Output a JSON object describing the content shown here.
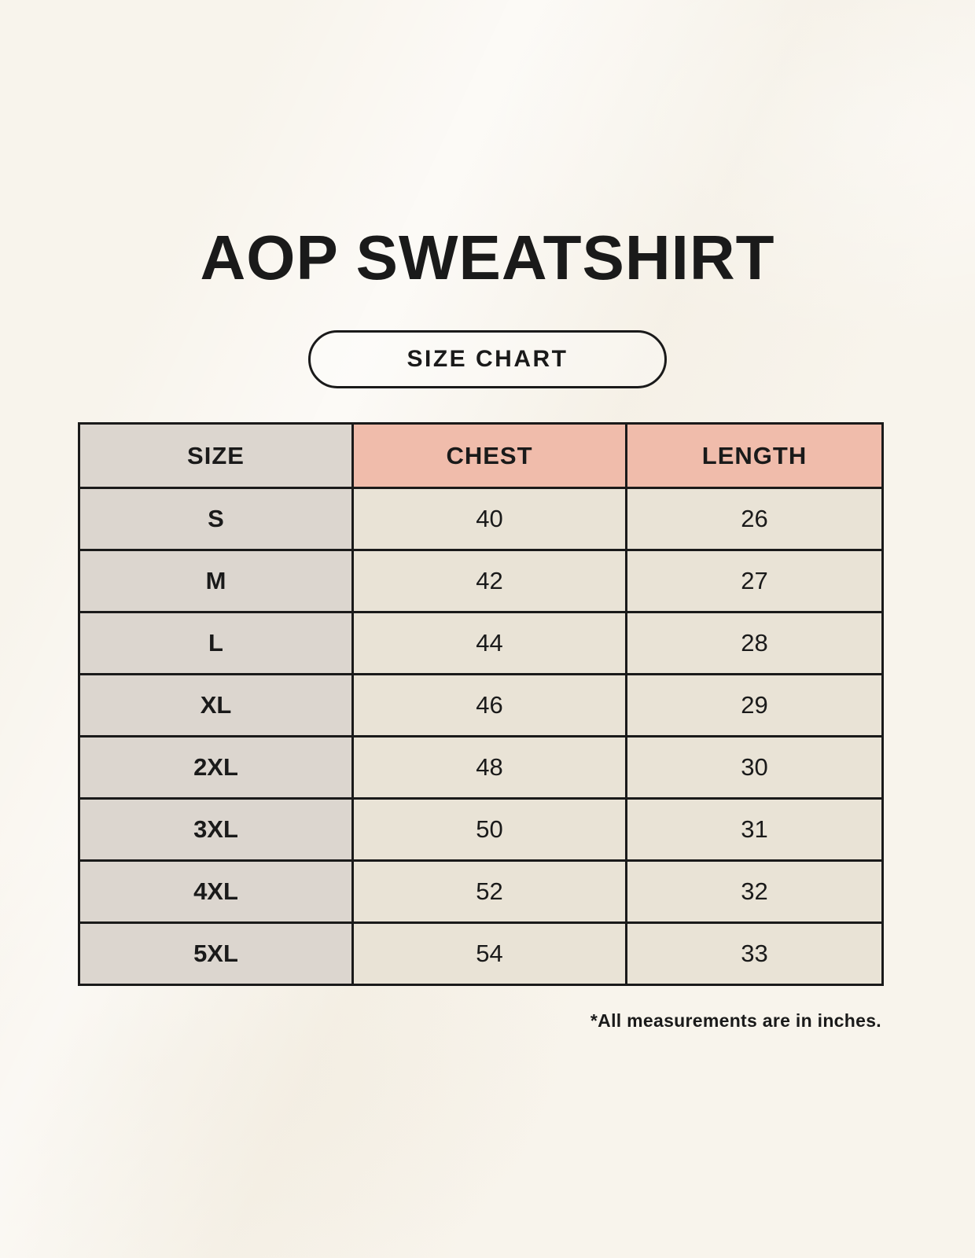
{
  "title": "AOP SWEATSHIRT",
  "badge": {
    "label": "SIZE CHART"
  },
  "table": {
    "headers": [
      "SIZE",
      "CHEST",
      "LENGTH"
    ],
    "rows": [
      {
        "size": "S",
        "chest": "40",
        "length": "26"
      },
      {
        "size": "M",
        "chest": "42",
        "length": "27"
      },
      {
        "size": "L",
        "chest": "44",
        "length": "28"
      },
      {
        "size": "XL",
        "chest": "46",
        "length": "29"
      },
      {
        "size": "2XL",
        "chest": "48",
        "length": "30"
      },
      {
        "size": "3XL",
        "chest": "50",
        "length": "31"
      },
      {
        "size": "4XL",
        "chest": "52",
        "length": "32"
      },
      {
        "size": "5XL",
        "chest": "54",
        "length": "33"
      }
    ]
  },
  "footnote": "*All measurements are in inches.",
  "colors": {
    "background": "#f8f4ec",
    "header_accent": "#f0bcab",
    "size_column": "#dcd6cf",
    "data_cell": "#e9e3d6",
    "border": "#1a1a1a",
    "text": "#1a1a1a"
  }
}
